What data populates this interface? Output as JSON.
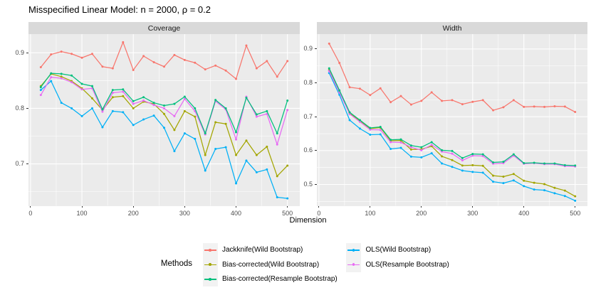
{
  "title": "Misspecified Linear Model: n = 2000, ρ = 0.2",
  "axis": {
    "x_title": "Dimension"
  },
  "theme_colors": {
    "panel_background": "#EBEBEB",
    "strip_background": "#D9D9D9",
    "gridline": "#FFFFFF",
    "tick_text": "#4D4D4D",
    "legend_key_background": "#F2F2F2"
  },
  "legend": {
    "title": "Methods",
    "items": [
      {
        "label": "Jackknife(Wild Bootstrap)",
        "color": "#F8766D"
      },
      {
        "label": "Bias-corrected(Wild Bootstrap)",
        "color": "#A3A500"
      },
      {
        "label": "Bias-corrected(Resample Bootstrap)",
        "color": "#00BF7D"
      },
      {
        "label": "OLS(Wild Bootstrap)",
        "color": "#00B0F6"
      },
      {
        "label": "OLS(Resample Bootstrap)",
        "color": "#E76BF3"
      }
    ]
  },
  "chart_data": {
    "type": "line",
    "xlabel": "Dimension",
    "x": [
      20,
      40,
      60,
      80,
      100,
      120,
      140,
      160,
      180,
      200,
      220,
      240,
      260,
      280,
      300,
      320,
      340,
      360,
      380,
      400,
      420,
      440,
      460,
      480,
      500
    ],
    "x_ticks": [
      0,
      100,
      200,
      300,
      400,
      500
    ],
    "x_minor_ticks": [
      50,
      150,
      250,
      350,
      450
    ],
    "xlim": [
      -4,
      524
    ],
    "panels": [
      {
        "label": "Coverage",
        "y_ticks": [
          0.7,
          0.8,
          0.9
        ],
        "ylim": [
          0.6247,
          0.9335
        ],
        "series": [
          {
            "name": "Jackknife(Wild Bootstrap)",
            "color": "#F8766D",
            "values": [
              0.874,
              0.897,
              0.902,
              0.898,
              0.891,
              0.898,
              0.875,
              0.872,
              0.919,
              0.869,
              0.894,
              0.883,
              0.875,
              0.896,
              0.887,
              0.882,
              0.87,
              0.877,
              0.868,
              0.853,
              0.913,
              0.872,
              0.885,
              0.857,
              0.885
            ]
          },
          {
            "name": "Bias-corrected(Wild Bootstrap)",
            "color": "#A3A500",
            "values": [
              0.84,
              0.862,
              0.857,
              0.849,
              0.836,
              0.818,
              0.797,
              0.82,
              0.822,
              0.8,
              0.812,
              0.808,
              0.79,
              0.761,
              0.795,
              0.785,
              0.716,
              0.775,
              0.772,
              0.716,
              0.742,
              0.716,
              0.731,
              0.678,
              0.697
            ]
          },
          {
            "name": "Bias-corrected(Resample Bootstrap)",
            "color": "#00BF7D",
            "values": [
              0.838,
              0.863,
              0.862,
              0.859,
              0.844,
              0.84,
              0.798,
              0.833,
              0.834,
              0.813,
              0.82,
              0.81,
              0.805,
              0.808,
              0.821,
              0.8,
              0.755,
              0.815,
              0.8,
              0.757,
              0.819,
              0.789,
              0.795,
              0.755,
              0.814
            ]
          },
          {
            "name": "OLS(Wild Bootstrap)",
            "color": "#00B0F6",
            "values": [
              0.833,
              0.849,
              0.81,
              0.8,
              0.786,
              0.8,
              0.766,
              0.795,
              0.793,
              0.77,
              0.78,
              0.787,
              0.765,
              0.723,
              0.755,
              0.745,
              0.688,
              0.727,
              0.73,
              0.665,
              0.706,
              0.685,
              0.69,
              0.64,
              0.638
            ]
          },
          {
            "name": "OLS(Resample Bootstrap)",
            "color": "#E76BF3",
            "values": [
              0.824,
              0.856,
              0.854,
              0.847,
              0.834,
              0.836,
              0.794,
              0.828,
              0.83,
              0.808,
              0.814,
              0.806,
              0.8,
              0.786,
              0.817,
              0.795,
              0.753,
              0.813,
              0.798,
              0.744,
              0.821,
              0.785,
              0.79,
              0.735,
              0.797
            ]
          }
        ]
      },
      {
        "label": "Width",
        "y_ticks": [
          0.5,
          0.6,
          0.7,
          0.8,
          0.9
        ],
        "ylim": [
          0.437,
          0.944
        ],
        "series": [
          {
            "name": "Jackknife(Wild Bootstrap)",
            "color": "#F8766D",
            "values": [
              0.916,
              0.859,
              0.787,
              0.783,
              0.764,
              0.784,
              0.743,
              0.761,
              0.736,
              0.747,
              0.772,
              0.747,
              0.749,
              0.737,
              0.744,
              0.749,
              0.719,
              0.728,
              0.749,
              0.729,
              0.73,
              0.729,
              0.731,
              0.73,
              0.714
            ]
          },
          {
            "name": "Bias-corrected(Wild Bootstrap)",
            "color": "#A3A500",
            "values": [
              0.838,
              0.775,
              0.71,
              0.688,
              0.665,
              0.668,
              0.629,
              0.63,
              0.603,
              0.604,
              0.613,
              0.583,
              0.572,
              0.556,
              0.557,
              0.555,
              0.526,
              0.523,
              0.531,
              0.511,
              0.505,
              0.501,
              0.49,
              0.482,
              0.465
            ]
          },
          {
            "name": "Bias-corrected(Resample Bootstrap)",
            "color": "#00BF7D",
            "values": [
              0.843,
              0.778,
              0.713,
              0.69,
              0.667,
              0.67,
              0.632,
              0.633,
              0.615,
              0.61,
              0.625,
              0.601,
              0.599,
              0.578,
              0.59,
              0.589,
              0.565,
              0.567,
              0.589,
              0.563,
              0.564,
              0.562,
              0.562,
              0.557,
              0.556
            ]
          },
          {
            "name": "OLS(Wild Bootstrap)",
            "color": "#00B0F6",
            "values": [
              0.829,
              0.765,
              0.69,
              0.665,
              0.647,
              0.648,
              0.605,
              0.608,
              0.582,
              0.58,
              0.592,
              0.562,
              0.552,
              0.541,
              0.537,
              0.535,
              0.508,
              0.504,
              0.512,
              0.495,
              0.485,
              0.483,
              0.474,
              0.466,
              0.452
            ]
          },
          {
            "name": "OLS(Resample Bootstrap)",
            "color": "#E76BF3",
            "values": [
              0.835,
              0.772,
              0.708,
              0.685,
              0.662,
              0.661,
              0.625,
              0.624,
              0.61,
              0.601,
              0.617,
              0.597,
              0.591,
              0.571,
              0.585,
              0.584,
              0.561,
              0.563,
              0.585,
              0.561,
              0.563,
              0.56,
              0.56,
              0.554,
              0.553
            ]
          }
        ]
      }
    ]
  }
}
